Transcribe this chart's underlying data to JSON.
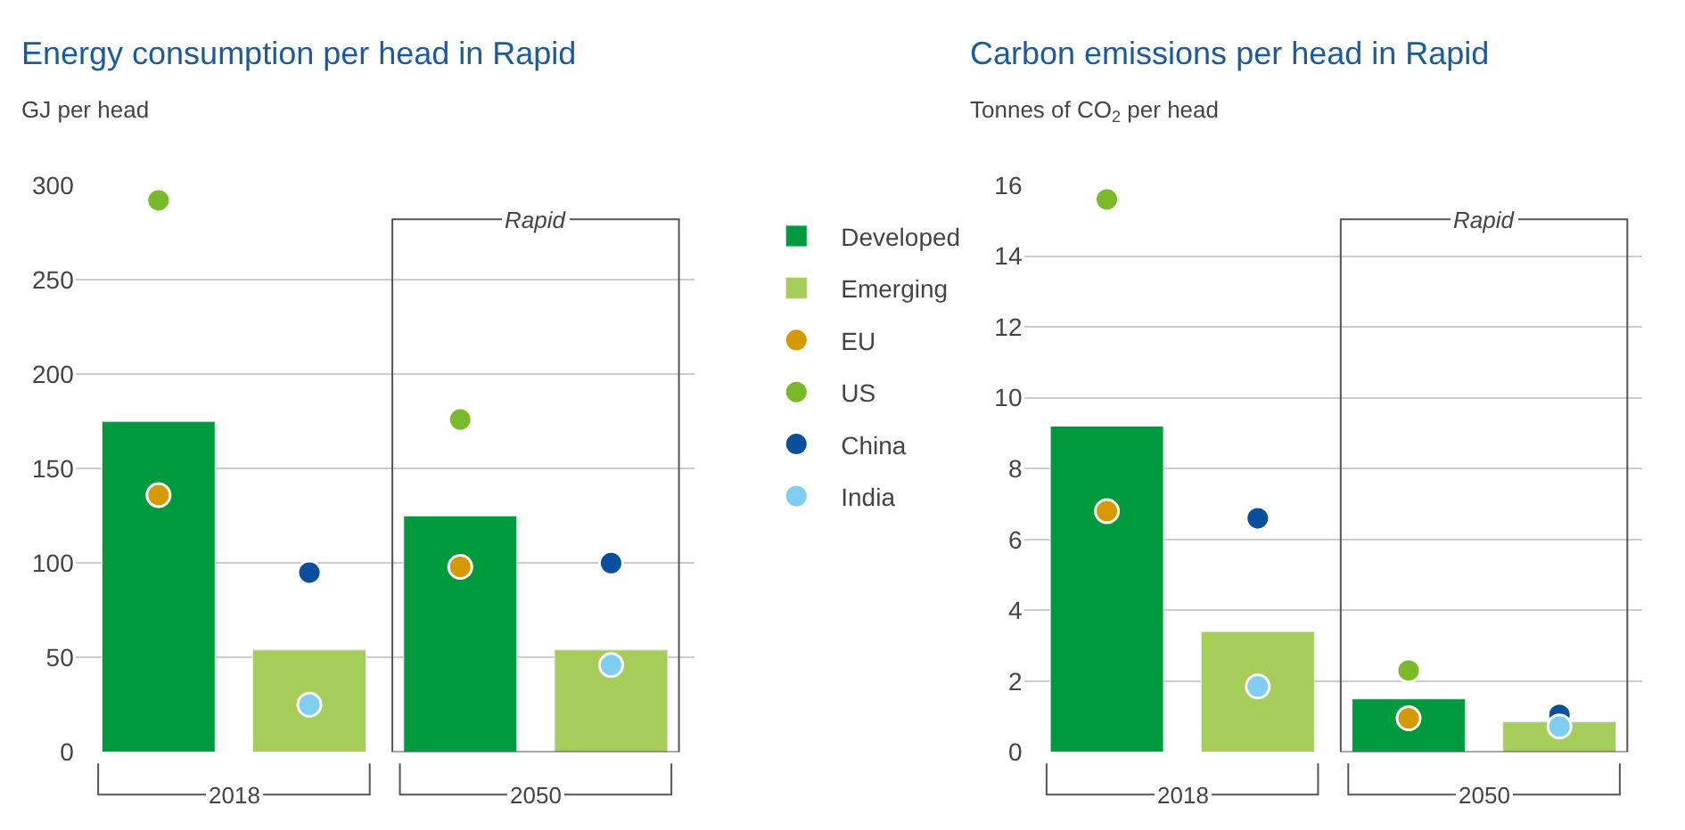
{
  "chart_data": [
    {
      "type": "bar",
      "title": "Energy consumption per head in Rapid",
      "subtitle": "GJ per head",
      "categories": [
        null,
        null,
        null,
        null
      ],
      "series": [
        {
          "name": "Developed",
          "color": "#009a3e",
          "values": [
            175,
            null,
            125,
            null
          ]
        },
        {
          "name": "Emerging",
          "color": "#a6cc5a",
          "values": [
            null,
            54,
            null,
            54
          ]
        },
        {
          "name": "EU",
          "type": "scatter",
          "color": "#d69a00",
          "values": [
            136,
            null,
            98,
            null
          ]
        },
        {
          "name": "US",
          "type": "scatter",
          "color": "#7ab929",
          "values": [
            292,
            null,
            176,
            null
          ]
        },
        {
          "name": "China",
          "type": "scatter",
          "color": "#0b4f9c",
          "values": [
            null,
            95,
            null,
            100
          ]
        },
        {
          "name": "India",
          "type": "scatter",
          "color": "#7fcdef",
          "values": [
            null,
            25,
            null,
            46
          ]
        }
      ],
      "ylim": [
        0,
        300
      ],
      "yticks": [
        0,
        50,
        100,
        150,
        200,
        250,
        300
      ],
      "grid": "y",
      "legend": "right",
      "marker": "circle",
      "annotations": [
        "2018",
        "2050",
        "Rapid"
      ]
    },
    {
      "type": "bar",
      "title": "Carbon emissions per head in Rapid",
      "subtitle": "Tonnes of CO$_{2}$ per head",
      "categories": [
        null,
        null,
        null,
        null
      ],
      "series": [
        {
          "color": "#009a3e",
          "values": [
            9.2,
            null,
            1.5,
            null
          ]
        },
        {
          "color": "#a6cc5a",
          "values": [
            null,
            3.4,
            null,
            0.85
          ]
        },
        {
          "type": "scatter",
          "color": "#d69a00",
          "values": [
            6.8,
            null,
            0.95,
            null
          ]
        },
        {
          "type": "scatter",
          "color": "#7ab929",
          "values": [
            15.6,
            null,
            2.3,
            null
          ]
        },
        {
          "type": "scatter",
          "color": "#0b4f9c",
          "values": [
            null,
            6.6,
            null,
            1.05
          ]
        },
        {
          "type": "scatter",
          "color": "#7fcdef",
          "values": [
            null,
            1.85,
            null,
            0.72
          ]
        }
      ],
      "ylim": [
        0,
        16
      ],
      "yticks": [
        0,
        2,
        4,
        6,
        8,
        10,
        12,
        14,
        16
      ],
      "grid": "y",
      "marker": "circle",
      "annotations": [
        "2018",
        "2050",
        "Rapid"
      ]
    }
  ]
}
